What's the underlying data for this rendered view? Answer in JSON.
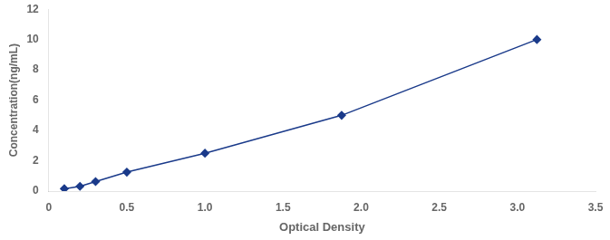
{
  "chart_data": {
    "type": "line",
    "x": [
      0.1,
      0.2,
      0.3,
      0.5,
      1.0,
      1.875,
      3.125
    ],
    "values": [
      0.156,
      0.312,
      0.625,
      1.25,
      2.5,
      5.0,
      10.0
    ],
    "color": "#1a3a8a",
    "marker": "diamond",
    "xlabel": "Optical Density",
    "ylabel": "Concentration(ng/mL)",
    "xlim": [
      0,
      3.5
    ],
    "ylim": [
      0,
      12
    ],
    "xticks": [
      0,
      0.5,
      {
        "value": 1,
        "label": "1.0"
      },
      1.5,
      {
        "value": 2,
        "label": "2.0"
      },
      2.5,
      {
        "value": 3,
        "label": "3.0"
      },
      3.5
    ],
    "yticks": [
      0,
      2,
      4,
      6,
      8,
      10,
      12
    ],
    "grid": false
  }
}
